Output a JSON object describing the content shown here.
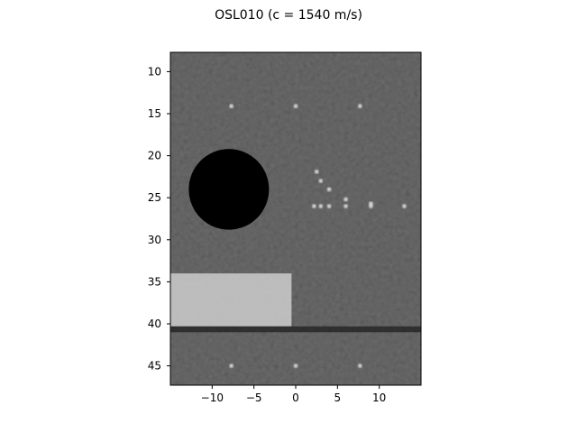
{
  "chart_data": {
    "type": "heatmap",
    "title": "OSL010 (c = 1540 m/s)",
    "xlabel": "",
    "ylabel": "",
    "colormap": "gray",
    "xlim": [
      -15,
      15
    ],
    "ylim": [
      47.3,
      7.7
    ],
    "x_ticks": [
      -10,
      -5,
      0,
      5,
      10
    ],
    "x_tick_labels": [
      "−10",
      "−5",
      "0",
      "5",
      "10"
    ],
    "y_ticks": [
      10,
      15,
      20,
      25,
      30,
      35,
      40,
      45
    ],
    "y_tick_labels": [
      "10",
      "15",
      "20",
      "25",
      "30",
      "35",
      "40",
      "45"
    ],
    "background_speckle": {
      "mean_gray": 0.3,
      "variation": 0.2
    },
    "anechoic_cyst": {
      "center_x": -8,
      "center_y": 24,
      "radius": 4.8,
      "gray": 0.0
    },
    "hyperechoic_region": {
      "x0": -15,
      "x1": -0.5,
      "y0": 34,
      "y1": 40.3,
      "gray": 0.8
    },
    "shadow_band": {
      "y0": 40.3,
      "y1": 41,
      "gray": 0.1
    },
    "point_targets": [
      {
        "x": -7.7,
        "y": 14.1
      },
      {
        "x": 0,
        "y": 14.1
      },
      {
        "x": 7.7,
        "y": 14.1
      },
      {
        "x": 2.5,
        "y": 21.9
      },
      {
        "x": 3,
        "y": 23
      },
      {
        "x": 4,
        "y": 24
      },
      {
        "x": 6,
        "y": 25.2
      },
      {
        "x": 9,
        "y": 25.7
      },
      {
        "x": 2.2,
        "y": 26
      },
      {
        "x": 3,
        "y": 26
      },
      {
        "x": 4,
        "y": 26
      },
      {
        "x": 6,
        "y": 26
      },
      {
        "x": 9,
        "y": 26
      },
      {
        "x": 13,
        "y": 26
      },
      {
        "x": -7.7,
        "y": 45
      },
      {
        "x": 0,
        "y": 45
      },
      {
        "x": 7.7,
        "y": 45
      }
    ]
  }
}
